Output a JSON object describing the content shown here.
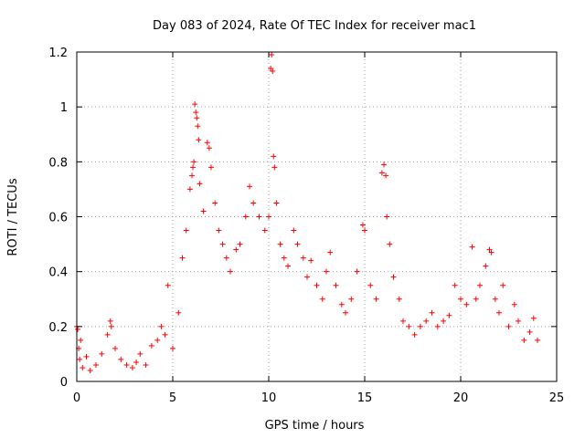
{
  "chart_data": {
    "type": "scatter",
    "title": "Day 083 of 2024, Rate Of TEC Index for receiver mac1",
    "xlabel": "GPS time / hours",
    "ylabel": "ROTI / TECUs",
    "xlim": [
      0,
      25
    ],
    "ylim": [
      0,
      1.2
    ],
    "x_ticks": [
      0,
      5,
      10,
      15,
      20,
      25
    ],
    "x_tick_labels": [
      "0",
      "5",
      "10",
      "15",
      "20",
      "25"
    ],
    "y_ticks": [
      0,
      0.2,
      0.4,
      0.6,
      0.8,
      1.0,
      1.2
    ],
    "y_tick_labels": [
      "0",
      "0.2",
      "0.4",
      "0.6",
      "0.8",
      "1",
      "1.2"
    ],
    "grid": true,
    "marker": "+",
    "marker_color": "#ff0000",
    "series": [
      {
        "name": "ROTI",
        "points": [
          [
            0.0,
            0.2
          ],
          [
            0.05,
            0.19
          ],
          [
            0.1,
            0.12
          ],
          [
            0.15,
            0.08
          ],
          [
            0.2,
            0.15
          ],
          [
            0.3,
            0.05
          ],
          [
            0.5,
            0.09
          ],
          [
            0.7,
            0.04
          ],
          [
            1.0,
            0.06
          ],
          [
            1.3,
            0.1
          ],
          [
            1.6,
            0.17
          ],
          [
            1.75,
            0.22
          ],
          [
            1.8,
            0.2
          ],
          [
            2.0,
            0.12
          ],
          [
            2.3,
            0.08
          ],
          [
            2.6,
            0.06
          ],
          [
            2.9,
            0.05
          ],
          [
            3.1,
            0.07
          ],
          [
            3.3,
            0.1
          ],
          [
            3.6,
            0.06
          ],
          [
            3.9,
            0.13
          ],
          [
            4.2,
            0.15
          ],
          [
            4.4,
            0.2
          ],
          [
            4.6,
            0.17
          ],
          [
            4.75,
            0.35
          ],
          [
            5.0,
            0.12
          ],
          [
            5.3,
            0.25
          ],
          [
            5.5,
            0.45
          ],
          [
            5.7,
            0.55
          ],
          [
            5.9,
            0.7
          ],
          [
            6.0,
            0.75
          ],
          [
            6.05,
            0.78
          ],
          [
            6.1,
            0.8
          ],
          [
            6.15,
            1.01
          ],
          [
            6.2,
            0.98
          ],
          [
            6.25,
            0.96
          ],
          [
            6.3,
            0.93
          ],
          [
            6.35,
            0.88
          ],
          [
            6.4,
            0.72
          ],
          [
            6.6,
            0.62
          ],
          [
            6.8,
            0.87
          ],
          [
            6.9,
            0.85
          ],
          [
            7.0,
            0.78
          ],
          [
            7.2,
            0.65
          ],
          [
            7.4,
            0.55
          ],
          [
            7.6,
            0.5
          ],
          [
            7.8,
            0.45
          ],
          [
            8.0,
            0.4
          ],
          [
            8.3,
            0.48
          ],
          [
            8.5,
            0.5
          ],
          [
            8.8,
            0.6
          ],
          [
            9.0,
            0.71
          ],
          [
            9.2,
            0.65
          ],
          [
            9.5,
            0.6
          ],
          [
            9.8,
            0.55
          ],
          [
            10.0,
            0.6
          ],
          [
            10.1,
            1.14
          ],
          [
            10.15,
            1.19
          ],
          [
            10.2,
            1.13
          ],
          [
            10.25,
            0.82
          ],
          [
            10.3,
            0.78
          ],
          [
            10.4,
            0.65
          ],
          [
            10.6,
            0.5
          ],
          [
            10.8,
            0.45
          ],
          [
            11.0,
            0.42
          ],
          [
            11.3,
            0.55
          ],
          [
            11.5,
            0.5
          ],
          [
            11.8,
            0.45
          ],
          [
            12.0,
            0.38
          ],
          [
            12.2,
            0.44
          ],
          [
            12.5,
            0.35
          ],
          [
            12.8,
            0.3
          ],
          [
            13.0,
            0.4
          ],
          [
            13.2,
            0.47
          ],
          [
            13.5,
            0.35
          ],
          [
            13.8,
            0.28
          ],
          [
            14.0,
            0.25
          ],
          [
            14.3,
            0.3
          ],
          [
            14.6,
            0.4
          ],
          [
            14.9,
            0.57
          ],
          [
            15.0,
            0.55
          ],
          [
            15.3,
            0.35
          ],
          [
            15.6,
            0.3
          ],
          [
            15.9,
            0.76
          ],
          [
            16.0,
            0.79
          ],
          [
            16.1,
            0.75
          ],
          [
            16.15,
            0.6
          ],
          [
            16.3,
            0.5
          ],
          [
            16.5,
            0.38
          ],
          [
            16.8,
            0.3
          ],
          [
            17.0,
            0.22
          ],
          [
            17.3,
            0.2
          ],
          [
            17.6,
            0.17
          ],
          [
            17.9,
            0.2
          ],
          [
            18.2,
            0.22
          ],
          [
            18.5,
            0.25
          ],
          [
            18.8,
            0.2
          ],
          [
            19.1,
            0.22
          ],
          [
            19.4,
            0.24
          ],
          [
            19.7,
            0.35
          ],
          [
            20.0,
            0.3
          ],
          [
            20.3,
            0.28
          ],
          [
            20.6,
            0.49
          ],
          [
            20.8,
            0.3
          ],
          [
            21.0,
            0.35
          ],
          [
            21.3,
            0.42
          ],
          [
            21.5,
            0.48
          ],
          [
            21.6,
            0.47
          ],
          [
            21.8,
            0.3
          ],
          [
            22.0,
            0.25
          ],
          [
            22.2,
            0.35
          ],
          [
            22.5,
            0.2
          ],
          [
            22.8,
            0.28
          ],
          [
            23.0,
            0.22
          ],
          [
            23.3,
            0.15
          ],
          [
            23.6,
            0.18
          ],
          [
            23.8,
            0.23
          ],
          [
            24.0,
            0.15
          ]
        ]
      }
    ]
  }
}
